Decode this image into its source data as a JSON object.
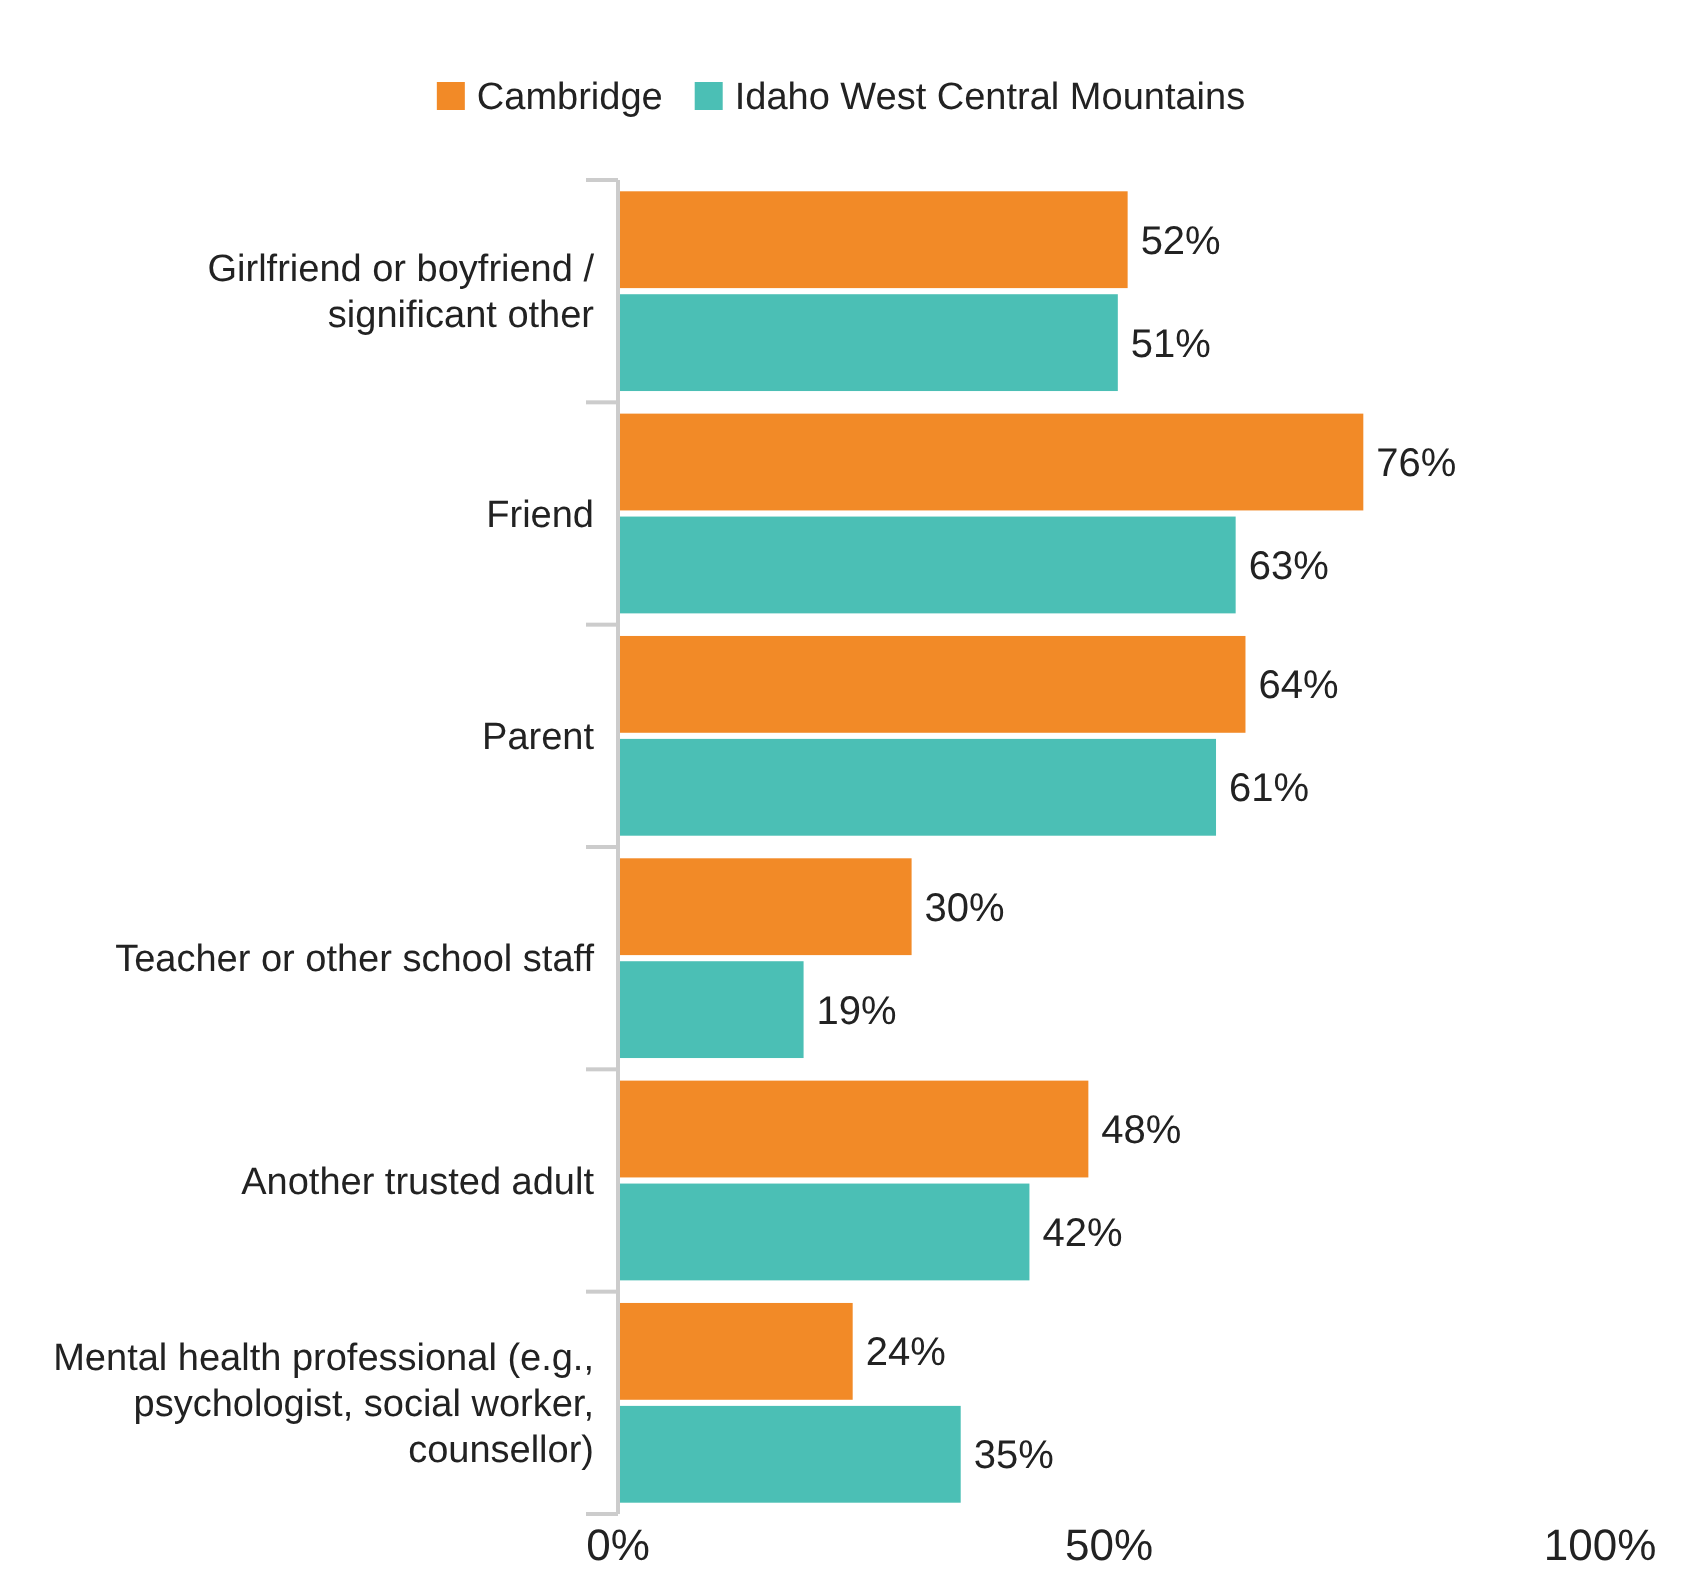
{
  "chart_data": {
    "type": "bar",
    "orientation": "horizontal",
    "categories": [
      "Girlfriend or boyfriend / significant other",
      "Friend",
      "Parent",
      "Teacher or other school staff",
      "Another trusted adult",
      "Mental health professional (e.g., psychologist, social worker, counsellor)"
    ],
    "series": [
      {
        "name": "Cambridge",
        "color": "#f28a27",
        "values": [
          52,
          76,
          64,
          30,
          48,
          24
        ],
        "value_labels": [
          "52%",
          "76%",
          "64%",
          "30%",
          "48%",
          "24%"
        ]
      },
      {
        "name": "Idaho West Central Mountains",
        "color": "#4bbfb5",
        "values": [
          51,
          63,
          61,
          19,
          42,
          35
        ],
        "value_labels": [
          "51%",
          "63%",
          "61%",
          "19%",
          "42%",
          "35%"
        ]
      }
    ],
    "xlim": [
      0,
      100
    ],
    "xticks": [
      {
        "value": 0,
        "label": "0%"
      },
      {
        "value": 50,
        "label": "50%"
      },
      {
        "value": 100,
        "label": "100%"
      }
    ],
    "legend": "top",
    "grid": false
  }
}
